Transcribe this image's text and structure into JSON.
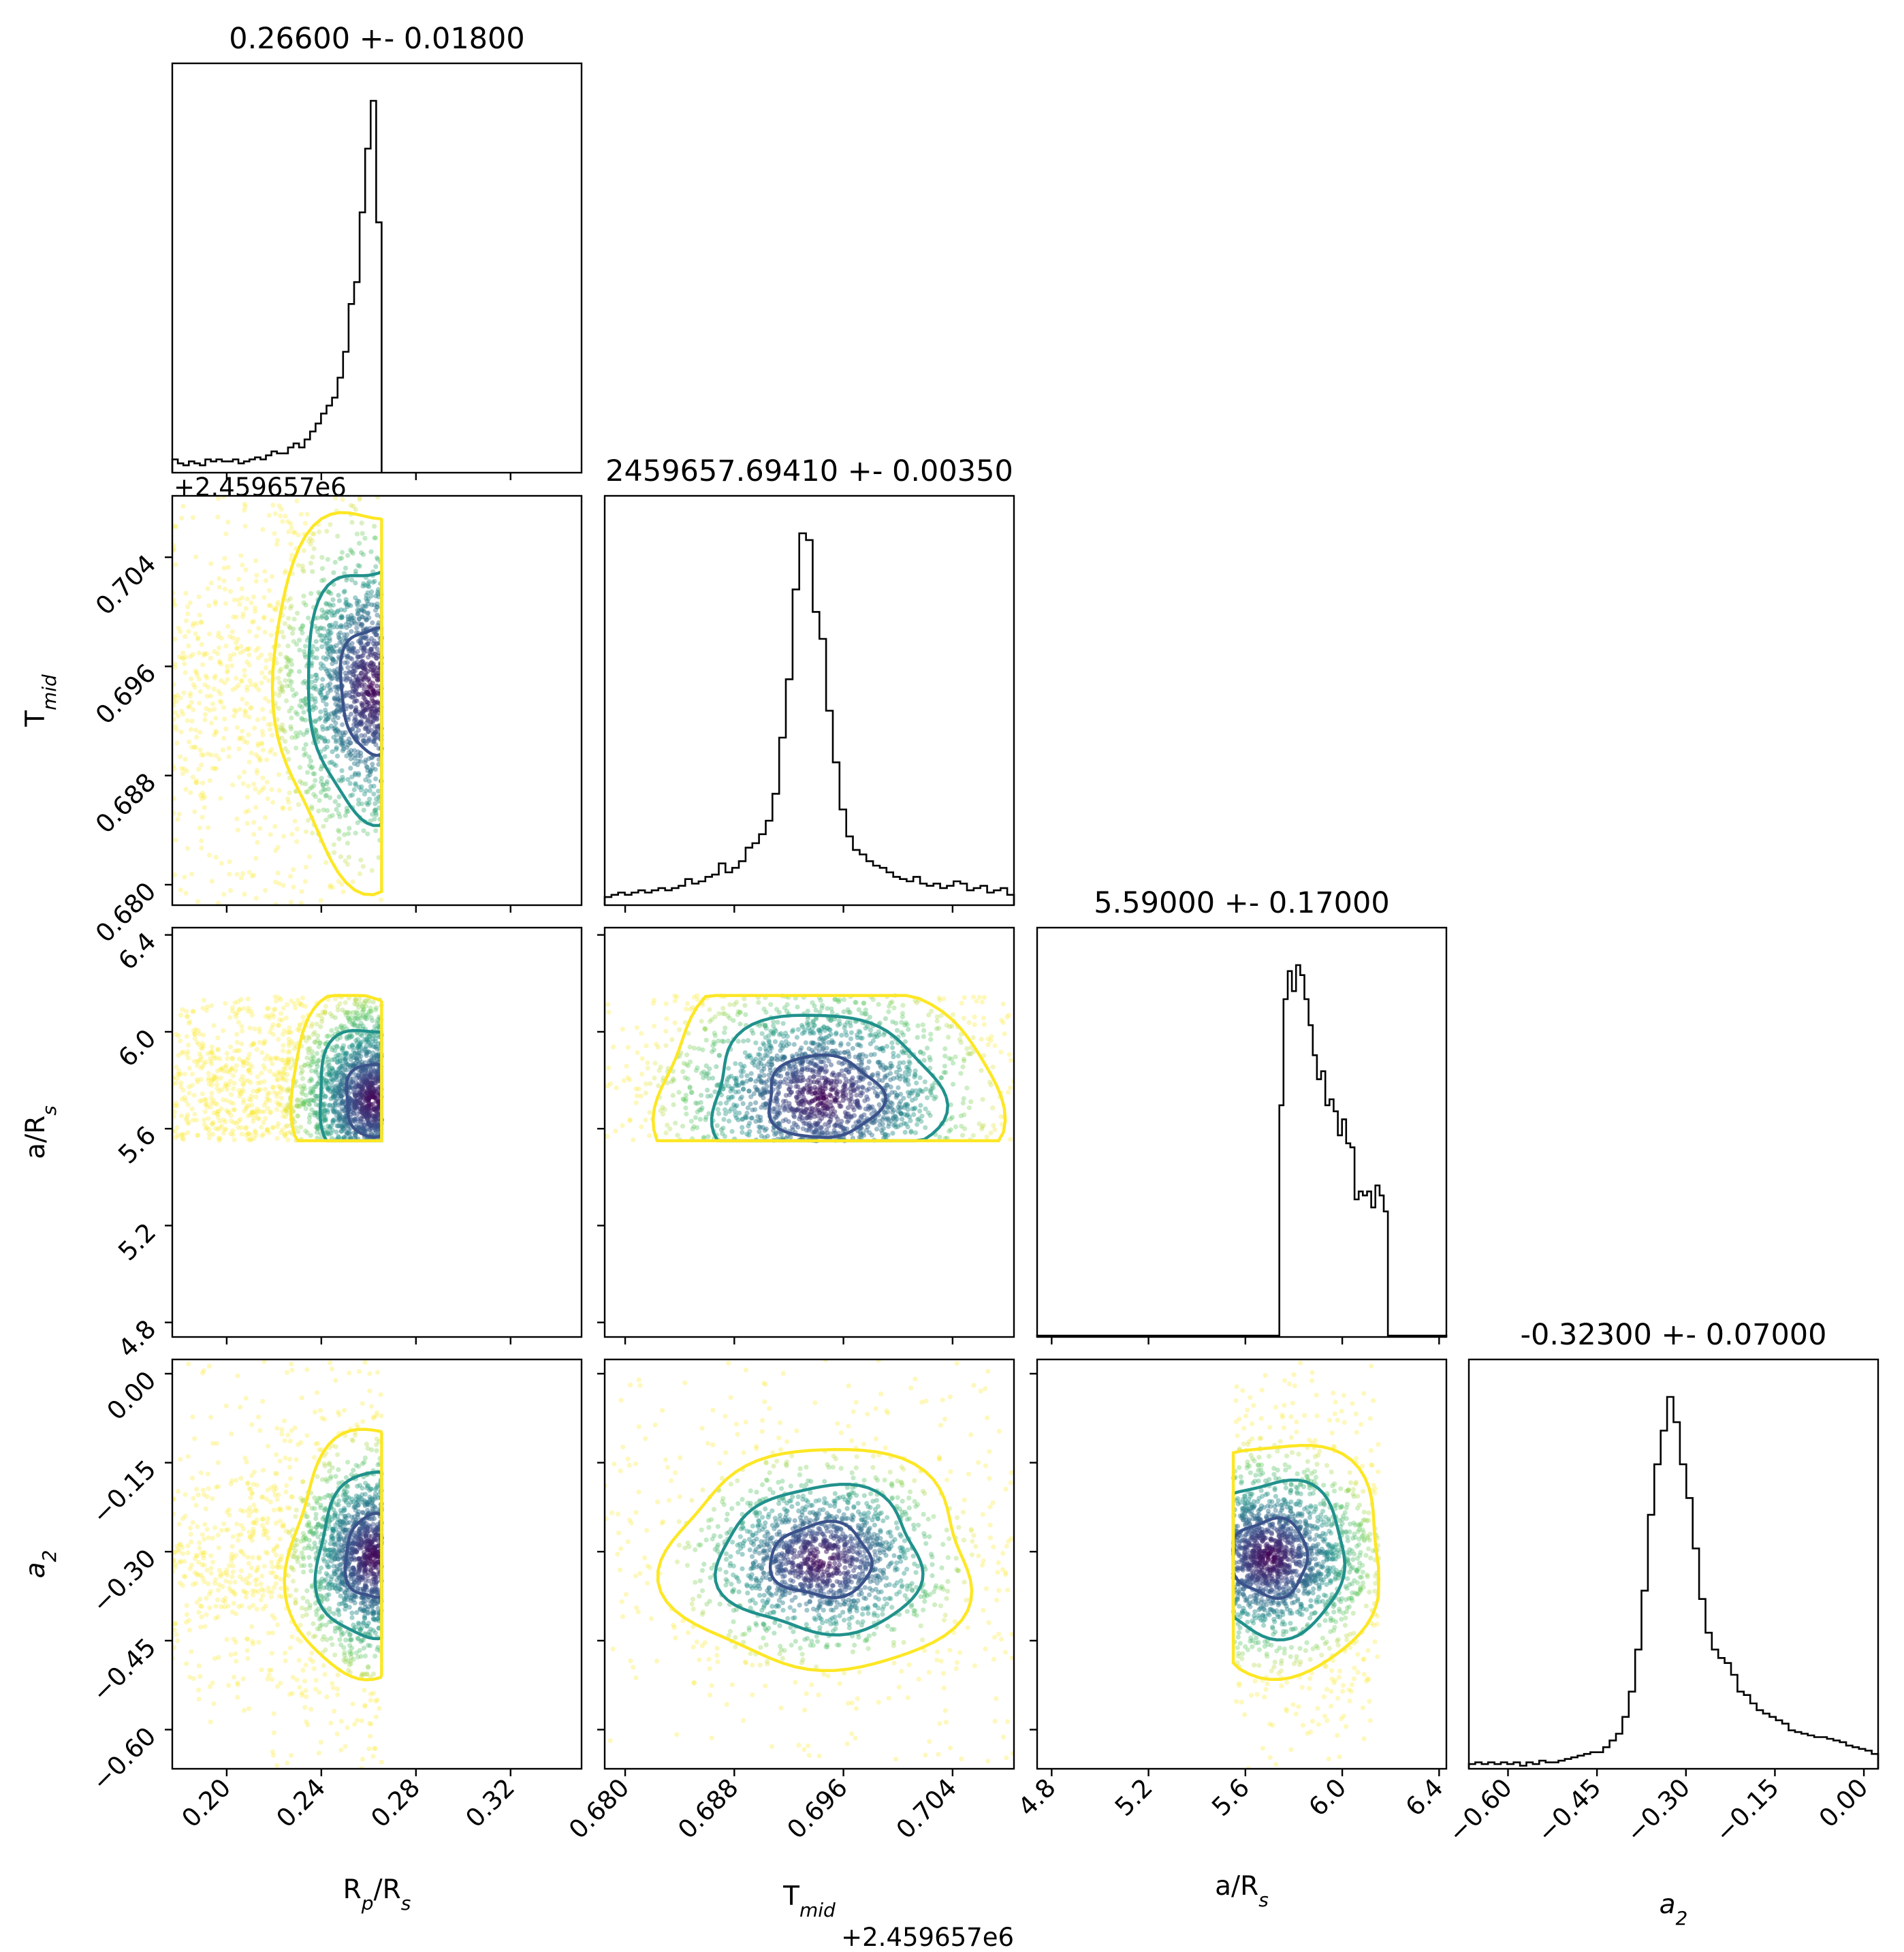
{
  "figure": {
    "type": "corner_plot",
    "params": [
      "rp_rs",
      "tmid",
      "a_rs",
      "a2"
    ],
    "titles": [
      "0.26600 +- 0.01800",
      "2459657.69410 +- 0.00350",
      "5.59000 +- 0.17000",
      "-0.32300 +- 0.07000"
    ],
    "axis_labels": [
      {
        "id": "rp_rs",
        "base": "R",
        "sub": "p",
        "rest": "/R",
        "sub2": "s"
      },
      {
        "id": "tmid",
        "base": "T",
        "sub": "mid",
        "rest": "",
        "sub2": ""
      },
      {
        "id": "a_rs",
        "base": "a/R",
        "sub": "s",
        "rest": "",
        "sub2": ""
      },
      {
        "id": "a2",
        "base": "a",
        "sub": "2",
        "rest": "",
        "sub2": "",
        "italic": true
      }
    ],
    "offset_text": "+2.459657e6",
    "colors": {
      "hist": "#000000",
      "contour_inner": "#3b528b",
      "contour_mid": "#21918c",
      "contour_outer": "#fde725"
    }
  },
  "chart_data": {
    "type": "corner",
    "ranges": {
      "rp_rs": [
        0.177,
        0.35
      ],
      "tmid": [
        0.6785,
        0.7085
      ],
      "a_rs": [
        4.74,
        6.43
      ],
      "a2": [
        -0.666,
        0.024
      ]
    },
    "ticks": {
      "rp_rs": {
        "values": [
          0.2,
          0.24,
          0.28,
          0.32
        ],
        "labels": [
          "0.20",
          "0.24",
          "0.28",
          "0.32"
        ]
      },
      "tmid": {
        "values": [
          0.68,
          0.688,
          0.696,
          0.704
        ],
        "labels": [
          "0.680",
          "0.688",
          "0.696",
          "0.704"
        ]
      },
      "a_rs": {
        "values": [
          4.8,
          5.2,
          5.6,
          6.0,
          6.4
        ],
        "labels": [
          "4.8",
          "5.2",
          "5.6",
          "6.0",
          "6.4"
        ]
      },
      "a2": {
        "values": [
          -0.6,
          -0.45,
          -0.3,
          -0.15,
          0.0
        ],
        "labels": [
          "−0.60",
          "−0.45",
          "−0.30",
          "−0.15",
          "0.00"
        ]
      }
    },
    "marginals": [
      {
        "param": "rp_rs",
        "bin_edges": [
          0.177,
          0.2655
        ],
        "counts": [
          6,
          4,
          3,
          5,
          4,
          3,
          6,
          5,
          6,
          5,
          5,
          6,
          4,
          5,
          6,
          7,
          6,
          8,
          10,
          9,
          9,
          12,
          14,
          12,
          16,
          20,
          24,
          29,
          33,
          37,
          47,
          60,
          84,
          95,
          130,
          162,
          186,
          125
        ]
      },
      {
        "param": "tmid",
        "bin_edges": [
          0.6785,
          0.7085
        ],
        "counts": [
          3,
          4,
          5,
          4,
          5,
          6,
          5,
          6,
          7,
          6,
          7,
          8,
          11,
          9,
          10,
          12,
          13,
          18,
          14,
          16,
          19,
          25,
          27,
          31,
          37,
          49,
          74,
          100,
          140,
          165,
          162,
          130,
          118,
          86,
          63,
          42,
          30,
          24,
          22,
          19,
          17,
          16,
          14,
          12,
          11,
          10,
          12,
          9,
          8,
          9,
          7,
          8,
          10,
          9,
          6,
          7,
          8,
          5,
          6,
          7,
          4
        ]
      },
      {
        "param": "a_rs",
        "bin_edges": [
          4.74,
          6.43
        ],
        "counts": [
          0,
          0,
          0,
          0,
          0,
          0,
          0,
          0,
          0,
          0,
          0,
          0,
          0,
          0,
          0,
          0,
          0,
          0,
          0,
          0,
          0,
          0,
          0,
          0,
          0,
          0,
          0,
          0,
          0,
          0,
          0,
          0,
          0,
          0,
          0,
          0,
          0,
          0,
          0,
          0,
          0,
          0,
          0,
          0,
          0,
          0,
          0,
          0,
          0,
          0,
          0,
          0,
          0,
          0,
          0,
          0,
          0,
          0,
          115,
          168,
          182,
          172,
          185,
          180,
          168,
          155,
          140,
          128,
          132,
          115,
          118,
          112,
          100,
          108,
          96,
          94,
          68,
          72,
          70,
          72,
          64,
          75,
          70,
          62,
          0,
          0,
          0,
          0,
          0,
          0,
          0,
          0,
          0,
          0,
          0,
          0,
          0,
          0
        ]
      },
      {
        "param": "a2",
        "bin_edges": [
          -0.666,
          0.024
        ],
        "counts": [
          2,
          3,
          2,
          3,
          2,
          3,
          2,
          3,
          1,
          3,
          2,
          4,
          3,
          3,
          4,
          5,
          6,
          7,
          8,
          9,
          9,
          12,
          16,
          20,
          30,
          45,
          70,
          105,
          150,
          180,
          200,
          220,
          205,
          180,
          160,
          130,
          100,
          80,
          70,
          65,
          62,
          55,
          45,
          43,
          38,
          34,
          32,
          30,
          28,
          26,
          22,
          21,
          20,
          19,
          18,
          18,
          17,
          16,
          15,
          13,
          12,
          11,
          10,
          8
        ]
      }
    ],
    "contours_2d": [
      {
        "x": "rp_rs",
        "y": "tmid",
        "center": [
          0.262,
          0.6944
        ],
        "sigma": [
          0.014,
          0.0046
        ]
      },
      {
        "x": "rp_rs",
        "y": "a_rs",
        "center": [
          0.262,
          5.72
        ],
        "sigma": [
          0.012,
          0.15
        ]
      },
      {
        "x": "tmid",
        "y": "a_rs",
        "center": [
          0.6945,
          5.73
        ],
        "sigma": [
          0.0042,
          0.17
        ]
      },
      {
        "x": "rp_rs",
        "y": "a2",
        "center": [
          0.262,
          -0.31
        ],
        "sigma": [
          0.012,
          0.07
        ]
      },
      {
        "x": "tmid",
        "y": "a2",
        "center": [
          0.6944,
          -0.315
        ],
        "sigma": [
          0.0037,
          0.062
        ]
      },
      {
        "x": "a_rs",
        "y": "a2",
        "center": [
          5.7,
          -0.31
        ],
        "sigma": [
          0.16,
          0.065
        ]
      }
    ],
    "contour_levels": [
      0.39,
      0.86,
      0.99
    ]
  }
}
